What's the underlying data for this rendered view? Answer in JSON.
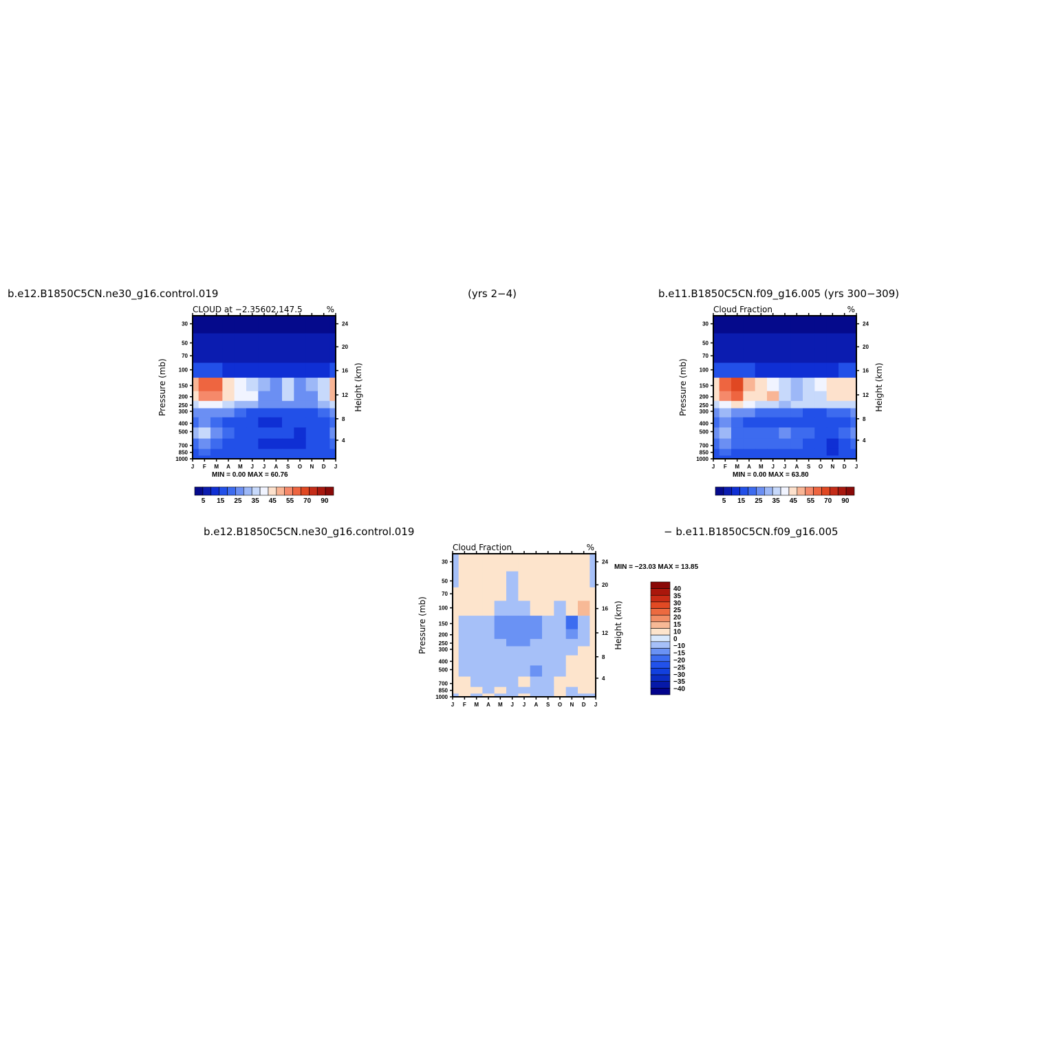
{
  "header": {
    "left": "b.e12.B1850C5CN.ne30_g16.control.019",
    "center": "(yrs 2−4)",
    "right": "b.e11.B1850C5CN.f09_g16.005 (yrs 300−309)",
    "bottom_left": "b.e12.B1850C5CN.ne30_g16.control.019",
    "bottom_right": "− b.e11.B1850C5CN.f09_g16.005"
  },
  "colors": {
    "abs_palette": [
      "#050a8c",
      "#0b1cb0",
      "#0f2fd4",
      "#2250e8",
      "#3d6bef",
      "#6b8ff3",
      "#9db8f7",
      "#c7d9fb",
      "#f1f4ff",
      "#fde1cc",
      "#f9b595",
      "#f5896a",
      "#ee6540",
      "#e04822",
      "#c42c18",
      "#a8180e",
      "#8a0a08"
    ],
    "diff_palette": [
      "#02038c",
      "#0619a8",
      "#0b2dc4",
      "#1240de",
      "#2252ea",
      "#3c6cf0",
      "#6a92f4",
      "#a6c0f8",
      "#d8e8fd",
      "#fde4cc",
      "#f7b996",
      "#f28e66",
      "#ec6a40",
      "#e24a24",
      "#c92c16",
      "#aa170c",
      "#8a0806"
    ]
  },
  "chart_data": [
    {
      "type": "heatmap",
      "title": "CLOUD at −2.35602,147.5",
      "units": "%",
      "xlabel": "",
      "ylabel": "Pressure (mb)",
      "ylabel_right": "Height (km)",
      "x_ticks": [
        "J",
        "F",
        "M",
        "A",
        "M",
        "J",
        "J",
        "A",
        "S",
        "O",
        "N",
        "D",
        "J"
      ],
      "y_ticks": [
        "30",
        "50",
        "70",
        "100",
        "150",
        "200",
        "250",
        "300",
        "400",
        "500",
        "700",
        "850",
        "1000"
      ],
      "y_ticks_right": [
        "24",
        "20",
        "16",
        "12",
        "8",
        "4"
      ],
      "min_max_text": "MIN =    0.00 MAX =   60.76",
      "min": 0.0,
      "max": 60.76,
      "colorbar_labels": [
        "5",
        "15",
        "25",
        "35",
        "45",
        "55",
        "70",
        "90"
      ],
      "levels_hPa": [
        30,
        50,
        70,
        100,
        150,
        200,
        250,
        300,
        400,
        500,
        700,
        850,
        1000
      ],
      "months": [
        "J",
        "F",
        "M",
        "A",
        "M",
        "J",
        "J",
        "A",
        "S",
        "O",
        "N",
        "D",
        "J"
      ],
      "values": [
        [
          1,
          1,
          1,
          1,
          1,
          1,
          1,
          1,
          1,
          1,
          1,
          1,
          1
        ],
        [
          2,
          2,
          2,
          2,
          2,
          2,
          2,
          2,
          2,
          2,
          2,
          2,
          2
        ],
        [
          3,
          3,
          3,
          3,
          3,
          3,
          3,
          3,
          3,
          3,
          3,
          3,
          3
        ],
        [
          10,
          11,
          11,
          9,
          7,
          6,
          5,
          6,
          7,
          7,
          7,
          9,
          10
        ],
        [
          45,
          55,
          58,
          44,
          36,
          34,
          25,
          22,
          32,
          22,
          25,
          34,
          48
        ],
        [
          44,
          52,
          54,
          42,
          38,
          36,
          24,
          20,
          30,
          22,
          24,
          32,
          46
        ],
        [
          30,
          36,
          36,
          32,
          28,
          26,
          22,
          20,
          24,
          22,
          22,
          26,
          32
        ],
        [
          22,
          24,
          24,
          20,
          16,
          14,
          12,
          12,
          12,
          14,
          14,
          16,
          22
        ],
        [
          18,
          20,
          18,
          14,
          12,
          10,
          8,
          6,
          10,
          10,
          12,
          14,
          18
        ],
        [
          28,
          34,
          20,
          16,
          14,
          12,
          10,
          10,
          10,
          8,
          10,
          12,
          20
        ],
        [
          18,
          20,
          16,
          14,
          12,
          12,
          8,
          8,
          8,
          8,
          10,
          12,
          16
        ],
        [
          14,
          16,
          14,
          12,
          12,
          12,
          10,
          10,
          10,
          10,
          10,
          12,
          14
        ],
        [
          12,
          14,
          12,
          12,
          12,
          12,
          10,
          10,
          10,
          10,
          10,
          12,
          12
        ]
      ]
    },
    {
      "type": "heatmap",
      "title": "Cloud Fraction",
      "units": "%",
      "xlabel": "",
      "ylabel": "Pressure (mb)",
      "ylabel_right": "Height (km)",
      "x_ticks": [
        "J",
        "F",
        "M",
        "A",
        "M",
        "J",
        "J",
        "A",
        "S",
        "O",
        "N",
        "D",
        "J"
      ],
      "y_ticks": [
        "30",
        "50",
        "70",
        "100",
        "150",
        "200",
        "250",
        "300",
        "400",
        "500",
        "700",
        "850",
        "1000"
      ],
      "y_ticks_right": [
        "24",
        "20",
        "16",
        "12",
        "8",
        "4"
      ],
      "min_max_text": "MIN =    0.00 MAX =   63.80",
      "min": 0.0,
      "max": 63.8,
      "colorbar_labels": [
        "5",
        "15",
        "25",
        "35",
        "45",
        "55",
        "70",
        "90"
      ],
      "levels_hPa": [
        30,
        50,
        70,
        100,
        150,
        200,
        250,
        300,
        400,
        500,
        700,
        850,
        1000
      ],
      "months": [
        "J",
        "F",
        "M",
        "A",
        "M",
        "J",
        "J",
        "A",
        "S",
        "O",
        "N",
        "D",
        "J"
      ],
      "values": [
        [
          1,
          1,
          1,
          1,
          1,
          1,
          1,
          1,
          1,
          1,
          1,
          1,
          1
        ],
        [
          2,
          2,
          2,
          2,
          2,
          2,
          2,
          2,
          2,
          2,
          2,
          2,
          2
        ],
        [
          3,
          3,
          3,
          3,
          3,
          3,
          3,
          3,
          3,
          3,
          3,
          3,
          3
        ],
        [
          12,
          12,
          12,
          10,
          9,
          8,
          7,
          6,
          7,
          8,
          9,
          10,
          12
        ],
        [
          44,
          56,
          62,
          48,
          42,
          38,
          32,
          28,
          34,
          36,
          40,
          44,
          44
        ],
        [
          40,
          50,
          56,
          44,
          44,
          46,
          30,
          28,
          34,
          32,
          44,
          40,
          40
        ],
        [
          30,
          36,
          40,
          36,
          34,
          30,
          28,
          30,
          32,
          30,
          30,
          32,
          30
        ],
        [
          22,
          26,
          24,
          20,
          18,
          16,
          16,
          16,
          14,
          14,
          16,
          18,
          22
        ],
        [
          18,
          20,
          16,
          10,
          14,
          12,
          14,
          12,
          12,
          12,
          12,
          14,
          18
        ],
        [
          20,
          26,
          18,
          16,
          18,
          16,
          20,
          18,
          18,
          14,
          14,
          16,
          20
        ],
        [
          16,
          20,
          16,
          16,
          16,
          16,
          16,
          16,
          14,
          10,
          8,
          12,
          16
        ],
        [
          14,
          16,
          14,
          14,
          14,
          14,
          14,
          14,
          12,
          10,
          8,
          12,
          14
        ],
        [
          12,
          14,
          12,
          12,
          12,
          12,
          12,
          12,
          12,
          10,
          10,
          12,
          12
        ]
      ]
    },
    {
      "type": "heatmap",
      "title": "Cloud Fraction",
      "units": "%",
      "xlabel": "",
      "ylabel": "Pressure (mb)",
      "ylabel_right": "Height (km)",
      "x_ticks": [
        "J",
        "F",
        "M",
        "A",
        "M",
        "J",
        "J",
        "A",
        "S",
        "O",
        "N",
        "D",
        "J"
      ],
      "y_ticks": [
        "30",
        "50",
        "70",
        "100",
        "150",
        "200",
        "250",
        "300",
        "400",
        "500",
        "700",
        "850",
        "1000"
      ],
      "y_ticks_right": [
        "24",
        "20",
        "16",
        "12",
        "8",
        "4"
      ],
      "min_max_text": "MIN = −23.03 MAX =   13.85",
      "min": -23.03,
      "max": 13.85,
      "colorbar_labels": [
        "40",
        "35",
        "30",
        "25",
        "20",
        "15",
        "10",
        "0",
        "−10",
        "−15",
        "−20",
        "−25",
        "−30",
        "−35",
        "−40"
      ],
      "levels_hPa": [
        30,
        50,
        70,
        100,
        150,
        200,
        250,
        300,
        400,
        500,
        700,
        850,
        1000
      ],
      "months": [
        "J",
        "F",
        "M",
        "A",
        "M",
        "J",
        "J",
        "A",
        "S",
        "O",
        "N",
        "D",
        "J"
      ],
      "values": [
        [
          -2,
          2,
          2,
          2,
          2,
          2,
          2,
          2,
          2,
          2,
          2,
          2,
          -2
        ],
        [
          -2,
          2,
          2,
          2,
          2,
          -2,
          2,
          2,
          2,
          2,
          2,
          2,
          -2
        ],
        [
          2,
          2,
          2,
          2,
          2,
          -2,
          2,
          2,
          2,
          2,
          2,
          2,
          2
        ],
        [
          2,
          2,
          2,
          2,
          -2,
          -2,
          -2,
          2,
          2,
          -2,
          2,
          12,
          2
        ],
        [
          2,
          -2,
          -2,
          -2,
          -12,
          -14,
          -12,
          -12,
          -2,
          -2,
          -20,
          -2,
          2
        ],
        [
          2,
          -2,
          -2,
          -2,
          -12,
          -12,
          -14,
          -12,
          -2,
          -2,
          -14,
          -2,
          2
        ],
        [
          2,
          -2,
          -2,
          -2,
          -2,
          -12,
          -12,
          -2,
          -2,
          -2,
          -2,
          -2,
          2
        ],
        [
          2,
          -2,
          -2,
          -2,
          -2,
          -2,
          -2,
          -2,
          -2,
          -2,
          -2,
          2,
          2
        ],
        [
          2,
          -2,
          -2,
          -2,
          -2,
          -2,
          -2,
          -2,
          -2,
          -2,
          2,
          2,
          2
        ],
        [
          2,
          -2,
          -2,
          -2,
          -2,
          -2,
          -2,
          -12,
          -2,
          -2,
          2,
          2,
          2
        ],
        [
          2,
          2,
          -2,
          -2,
          -2,
          -2,
          2,
          -2,
          -2,
          2,
          2,
          2,
          2
        ],
        [
          2,
          2,
          2,
          -2,
          2,
          -2,
          -2,
          -2,
          -2,
          2,
          -2,
          2,
          2
        ],
        [
          -2,
          2,
          -2,
          2,
          -2,
          -2,
          2,
          -2,
          -2,
          2,
          -2,
          -2,
          -2
        ]
      ]
    }
  ]
}
